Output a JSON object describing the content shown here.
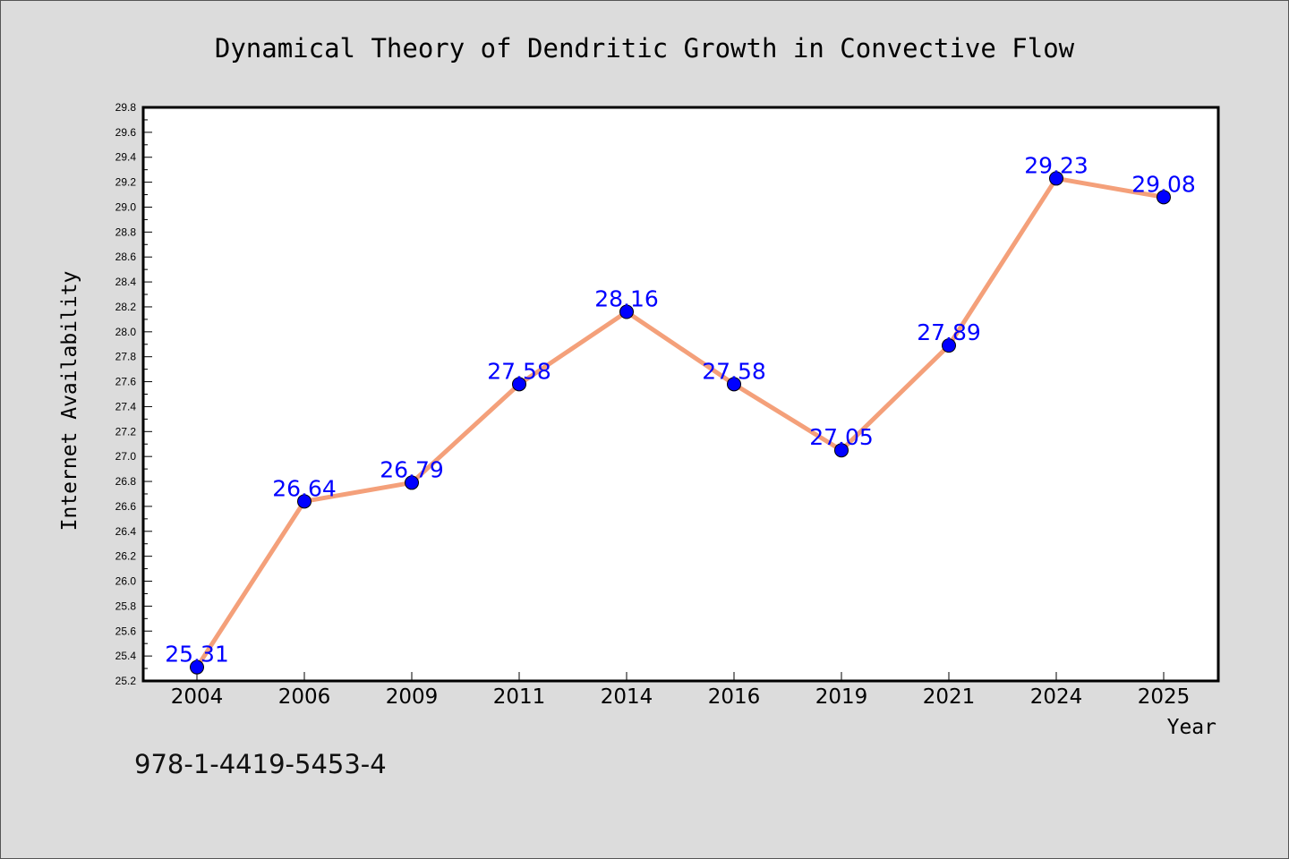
{
  "chart_data": {
    "type": "line",
    "title": "Dynamical Theory of Dendritic Growth in Convective Flow",
    "xlabel": "Year",
    "ylabel": "Internet Availability",
    "categories": [
      "2004",
      "2006",
      "2009",
      "2011",
      "2014",
      "2016",
      "2019",
      "2021",
      "2024",
      "2025"
    ],
    "series": [
      {
        "values": [
          25.31,
          26.64,
          26.79,
          27.58,
          28.16,
          27.58,
          27.05,
          27.89,
          29.23,
          29.08
        ],
        "labels": [
          "25.31",
          "26.64",
          "26.79",
          "27.58",
          "28.16",
          "27.58",
          "27.05",
          "27.89",
          "29.23",
          "29.08"
        ],
        "line_color": "#f4a07a",
        "marker_color": "#0000ff"
      }
    ],
    "ylim": [
      25.2,
      29.8
    ],
    "yticks": [
      "25.2",
      "25.4",
      "25.6",
      "25.8",
      "26.0",
      "26.2",
      "26.4",
      "26.6",
      "26.8",
      "27.0",
      "27.2",
      "27.4",
      "27.6",
      "27.8",
      "28.0",
      "28.2",
      "28.4",
      "28.6",
      "28.8",
      "29.0",
      "29.2",
      "29.4",
      "29.6",
      "29.8"
    ],
    "grid": false,
    "legend": "none"
  },
  "footer": {
    "isbn": "978-1-4419-5453-4"
  }
}
